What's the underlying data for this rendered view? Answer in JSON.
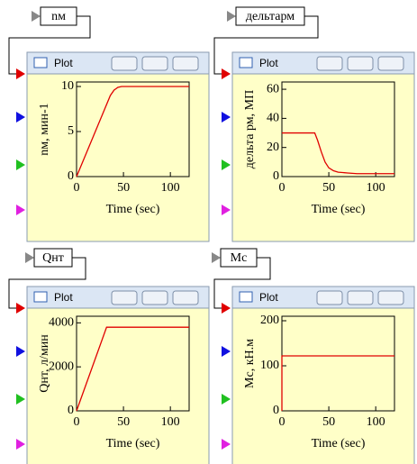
{
  "blocks": [
    {
      "label": "nм",
      "window_title": "Plot"
    },
    {
      "label": "дельтарм",
      "window_title": "Plot"
    },
    {
      "label": "Qнт",
      "window_title": "Plot"
    },
    {
      "label": "Mc",
      "window_title": "Plot"
    }
  ],
  "chart_data": [
    {
      "type": "line",
      "ylabel": "nм, мин-1",
      "xlabel": "Time (sec)",
      "x": [
        0,
        10,
        20,
        30,
        36,
        40,
        44,
        48,
        55,
        120
      ],
      "values": [
        0,
        2.5,
        5,
        7.5,
        9,
        9.6,
        9.9,
        10,
        10,
        10
      ],
      "color": "#e00000",
      "xlim": [
        0,
        120
      ],
      "xticks": [
        0,
        50,
        100
      ],
      "ylim": [
        0,
        10.5
      ],
      "yticks": [
        0,
        5,
        10
      ]
    },
    {
      "type": "line",
      "ylabel": "дельта рм, МП",
      "xlabel": "Time (sec)",
      "x": [
        0,
        35,
        38,
        42,
        46,
        50,
        55,
        60,
        70,
        80,
        120
      ],
      "values": [
        30,
        30,
        25,
        17,
        10,
        6,
        4,
        3,
        2.5,
        2,
        2
      ],
      "color": "#e00000",
      "xlim": [
        0,
        120
      ],
      "xticks": [
        0,
        50,
        100
      ],
      "ylim": [
        0,
        65
      ],
      "yticks": [
        0,
        20,
        40,
        60
      ]
    },
    {
      "type": "line",
      "ylabel": "Qнт, л/мин",
      "xlabel": "Time (sec)",
      "x": [
        0,
        32,
        120
      ],
      "values": [
        0,
        3800,
        3800
      ],
      "color": "#e00000",
      "xlim": [
        0,
        120
      ],
      "xticks": [
        0,
        50,
        100
      ],
      "ylim": [
        0,
        4300
      ],
      "yticks": [
        0,
        2000,
        4000
      ]
    },
    {
      "type": "line",
      "ylabel": "Mc, кН.м",
      "xlabel": "Time (sec)",
      "x": [
        0,
        0,
        120
      ],
      "values": [
        0,
        122,
        122
      ],
      "color": "#e00000",
      "xlim": [
        0,
        120
      ],
      "xticks": [
        0,
        50,
        100
      ],
      "ylim": [
        0,
        210
      ],
      "yticks": [
        0,
        100,
        200
      ]
    }
  ]
}
